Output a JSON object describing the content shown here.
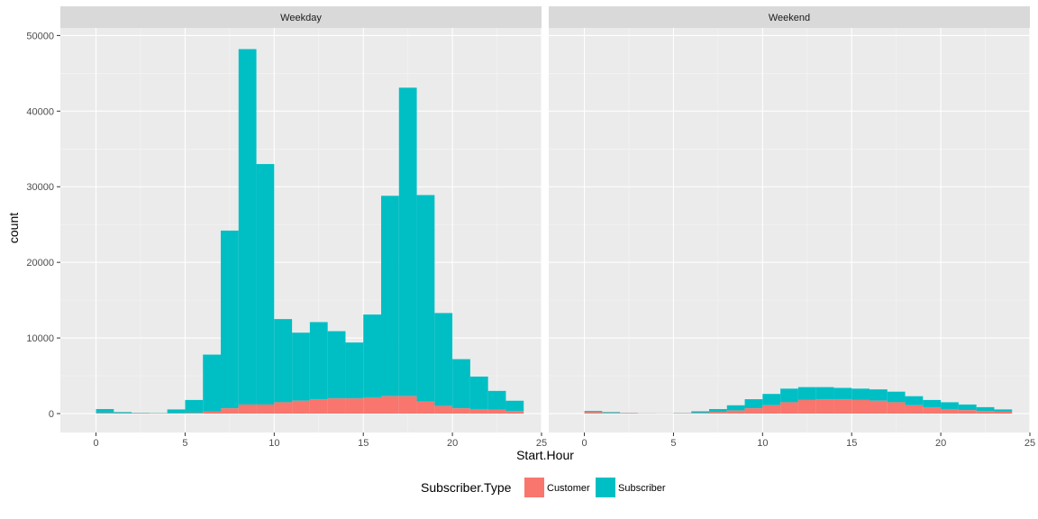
{
  "chart_data": {
    "type": "bar",
    "subtype": "stacked-histogram-faceted",
    "xlabel": "Start.Hour",
    "ylabel": "count",
    "xlim": [
      -2,
      25
    ],
    "ylim": [
      -2500,
      51000
    ],
    "x_ticks": [
      0,
      5,
      10,
      15,
      20,
      25
    ],
    "y_ticks": [
      0,
      10000,
      20000,
      30000,
      40000,
      50000
    ],
    "x_tick_labels": [
      "0",
      "5",
      "10",
      "15",
      "20",
      "25"
    ],
    "y_tick_labels": [
      "0",
      "10000",
      "20000",
      "30000",
      "40000",
      "50000"
    ],
    "bin_starts": [
      0,
      1,
      2,
      3,
      4,
      5,
      6,
      7,
      8,
      9,
      10,
      11,
      12,
      13,
      14,
      15,
      16,
      17,
      18,
      19,
      20,
      21,
      22,
      23
    ],
    "bin_width": 1,
    "legend": {
      "title": "Subscriber.Type",
      "placement": "bottom",
      "entries": [
        {
          "name": "Customer",
          "color": "#F8766D"
        },
        {
          "name": "Subscriber",
          "color": "#00BFC4"
        }
      ]
    },
    "panels": [
      {
        "name": "Weekday",
        "series": [
          {
            "name": "Customer",
            "values": [
              100,
              50,
              30,
              20,
              30,
              100,
              300,
              700,
              1200,
              1200,
              1500,
              1700,
              1900,
              2000,
              2000,
              2100,
              2300,
              2300,
              1600,
              1000,
              700,
              600,
              500,
              350
            ]
          },
          {
            "name": "Subscriber",
            "values": [
              500,
              150,
              70,
              50,
              520,
              1700,
              7500,
              23500,
              47000,
              31800,
              11000,
              9000,
              10200,
              8900,
              7400,
              11000,
              26500,
              40800,
              27300,
              12300,
              6500,
              4300,
              2500,
              1350
            ]
          }
        ]
      },
      {
        "name": "Weekend",
        "series": [
          {
            "name": "Customer",
            "values": [
              200,
              100,
              50,
              20,
              10,
              30,
              100,
              200,
              400,
              700,
              1100,
              1500,
              1800,
              1900,
              1900,
              1800,
              1700,
              1500,
              1100,
              800,
              600,
              450,
              350,
              250
            ]
          },
          {
            "name": "Subscriber",
            "values": [
              150,
              100,
              40,
              20,
              15,
              50,
              200,
              400,
              700,
              1200,
              1500,
              1800,
              1700,
              1600,
              1500,
              1500,
              1500,
              1400,
              1200,
              1000,
              900,
              750,
              500,
              300
            ]
          }
        ]
      }
    ]
  }
}
